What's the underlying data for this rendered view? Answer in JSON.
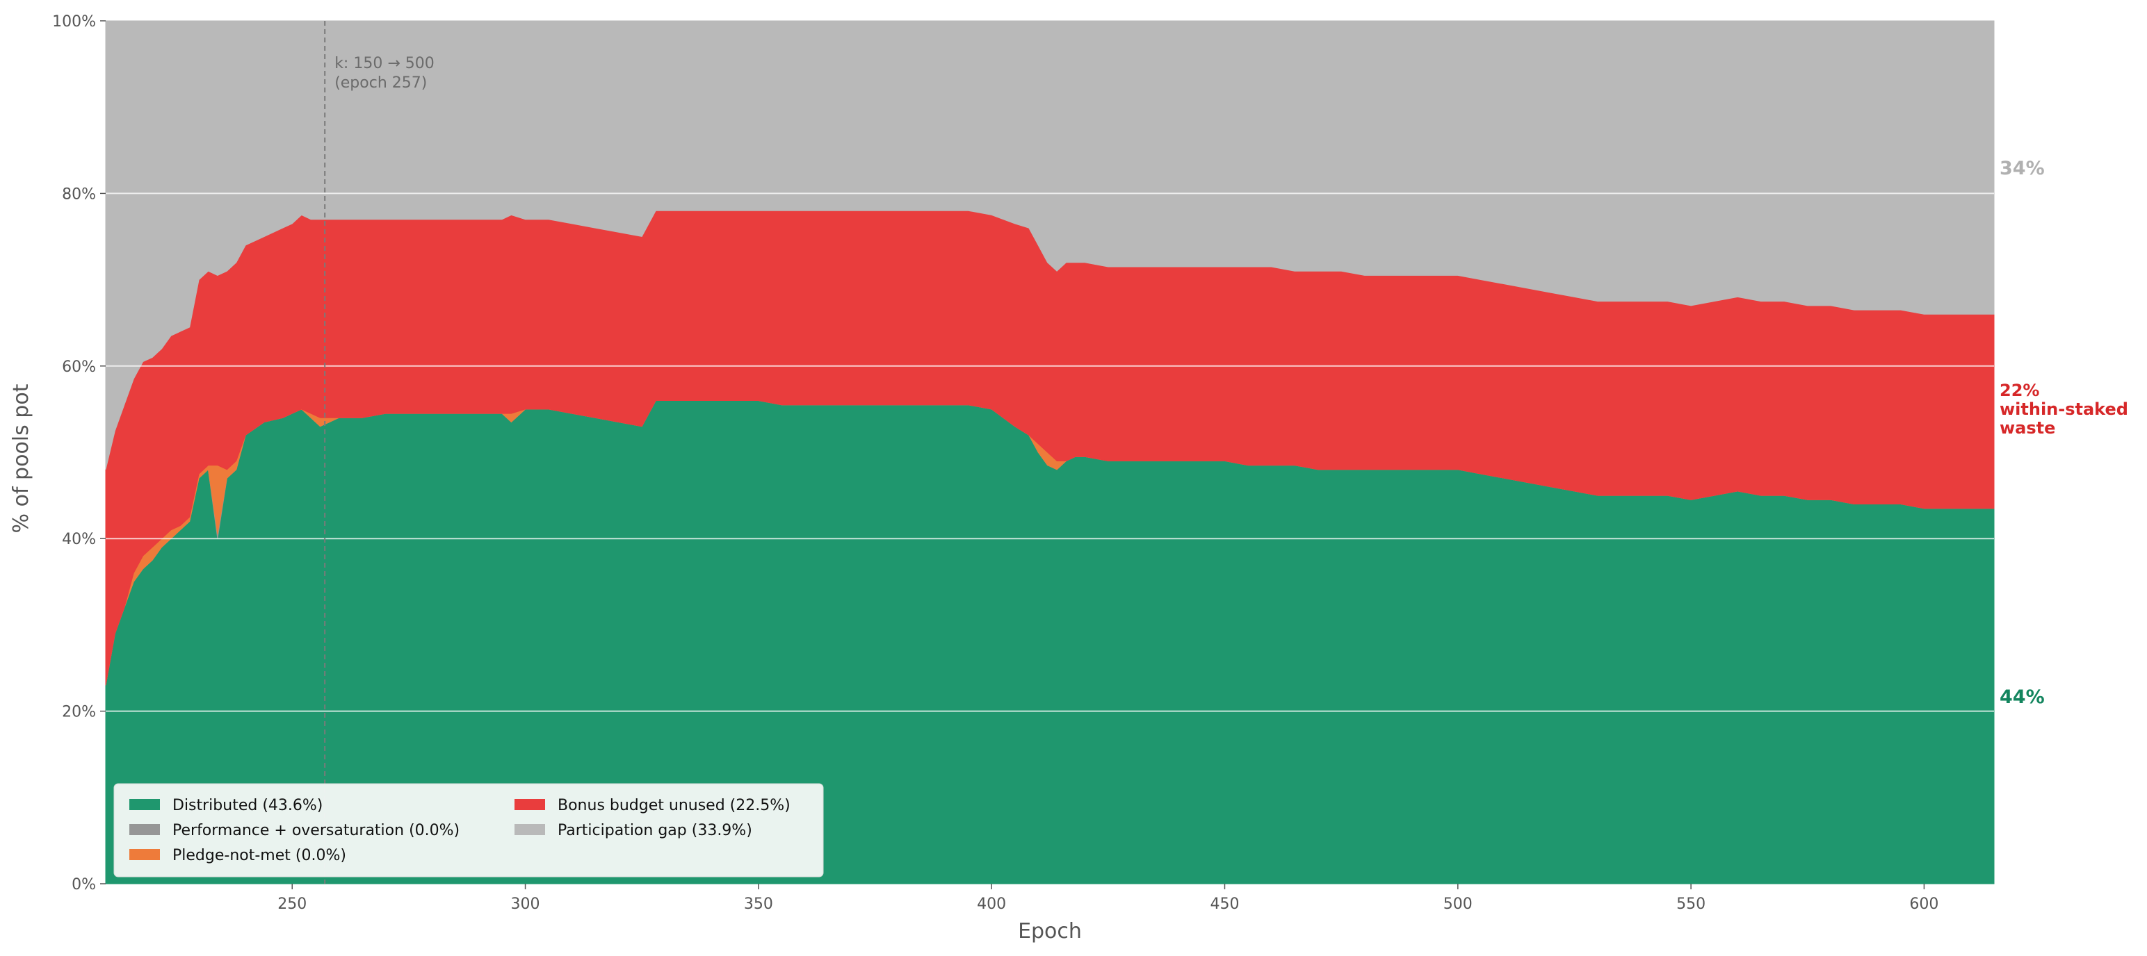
{
  "chart_data": {
    "type": "area",
    "stacked": true,
    "title": "",
    "xlabel": "Epoch",
    "ylabel": "% of pools pot",
    "xlim": [
      210,
      615
    ],
    "ylim": [
      0,
      100
    ],
    "x_ticks": [
      250,
      300,
      350,
      400,
      450,
      500,
      550,
      600
    ],
    "x_tick_labels": [
      "250",
      "300",
      "350",
      "400",
      "450",
      "500",
      "550",
      "600"
    ],
    "y_ticks": [
      0,
      20,
      40,
      60,
      80,
      100
    ],
    "y_tick_labels": [
      "0%",
      "20%",
      "40%",
      "60%",
      "80%",
      "100%"
    ],
    "grid": "horizontal",
    "legend_position": "bottom-left",
    "x": [
      210,
      212,
      214,
      216,
      218,
      220,
      222,
      224,
      226,
      228,
      230,
      232,
      234,
      236,
      238,
      240,
      244,
      248,
      250,
      252,
      254,
      256,
      258,
      260,
      265,
      270,
      275,
      280,
      285,
      290,
      295,
      297,
      300,
      305,
      310,
      315,
      320,
      325,
      328,
      330,
      335,
      340,
      345,
      350,
      355,
      360,
      365,
      370,
      375,
      380,
      385,
      390,
      395,
      400,
      405,
      408,
      410,
      412,
      414,
      416,
      418,
      420,
      425,
      430,
      435,
      440,
      445,
      450,
      455,
      460,
      465,
      470,
      475,
      480,
      485,
      490,
      495,
      500,
      505,
      510,
      515,
      520,
      525,
      530,
      535,
      540,
      545,
      550,
      555,
      560,
      565,
      570,
      575,
      580,
      585,
      590,
      595,
      600,
      605,
      610,
      615
    ],
    "series": [
      {
        "name": "Distributed (43.6%)",
        "color": "#1f976e",
        "values": [
          23,
          29,
          32,
          35,
          36.5,
          37.5,
          39,
          40,
          41,
          42,
          47,
          48,
          40,
          47,
          48,
          52,
          53.5,
          54,
          54.5,
          55,
          54,
          53,
          53.5,
          54,
          54,
          54.5,
          54.5,
          54.5,
          54.5,
          54.5,
          54.5,
          53.5,
          55,
          55,
          54.5,
          54,
          53.5,
          53,
          56,
          56,
          56,
          56,
          56,
          56,
          55.5,
          55.5,
          55.5,
          55.5,
          55.5,
          55.5,
          55.5,
          55.5,
          55.5,
          55,
          53,
          52,
          50,
          48.5,
          48,
          49,
          49.5,
          49.5,
          49,
          49,
          49,
          49,
          49,
          49,
          48.5,
          48.5,
          48.5,
          48,
          48,
          48,
          48,
          48,
          48,
          48,
          47.5,
          47,
          46.5,
          46,
          45.5,
          45,
          45,
          45,
          45,
          44.5,
          45,
          45.5,
          45,
          45,
          44.5,
          44.5,
          44,
          44,
          44,
          43.5,
          43.5,
          43.5,
          43.5
        ]
      },
      {
        "name": "Performance + oversaturation (0.0%)",
        "color": "#969696",
        "values": [
          0,
          0,
          0,
          0,
          0,
          0,
          0,
          0,
          0,
          0,
          0,
          0,
          0.5,
          0,
          0,
          0,
          0,
          0,
          0,
          0,
          0,
          0,
          0,
          0,
          0,
          0,
          0,
          0,
          0,
          0,
          0,
          0,
          0,
          0,
          0,
          0,
          0,
          0,
          0,
          0,
          0,
          0,
          0,
          0,
          0,
          0,
          0,
          0,
          0,
          0,
          0,
          0,
          0,
          0,
          0,
          0,
          0,
          0,
          0,
          0,
          0,
          0,
          0,
          0,
          0,
          0,
          0,
          0,
          0,
          0,
          0,
          0,
          0,
          0,
          0,
          0,
          0,
          0,
          0,
          0,
          0,
          0,
          0,
          0,
          0,
          0,
          0,
          0,
          0,
          0,
          0,
          0,
          0,
          0,
          0,
          0,
          0,
          0,
          0,
          0,
          0
        ]
      },
      {
        "name": "Pledge-not-met (0.0%)",
        "color": "#ee7b3a",
        "values": [
          0,
          0,
          0,
          1,
          1.5,
          1.5,
          1,
          1,
          0.5,
          0.5,
          0.5,
          0.5,
          8,
          1,
          1,
          0,
          0,
          0,
          0,
          0,
          0.5,
          1,
          0.5,
          0,
          0,
          0,
          0,
          0,
          0,
          0,
          0,
          1,
          0,
          0,
          0,
          0,
          0,
          0,
          0,
          0,
          0,
          0,
          0,
          0,
          0,
          0,
          0,
          0,
          0,
          0,
          0,
          0,
          0,
          0,
          0,
          0,
          1,
          1.5,
          1,
          0,
          0,
          0,
          0,
          0,
          0,
          0,
          0,
          0,
          0,
          0,
          0,
          0,
          0,
          0,
          0,
          0,
          0,
          0,
          0,
          0,
          0,
          0,
          0,
          0,
          0,
          0,
          0,
          0,
          0,
          0,
          0,
          0,
          0,
          0,
          0,
          0,
          0,
          0,
          0,
          0,
          0
        ]
      },
      {
        "name": "Bonus budget unused (22.5%)",
        "color": "#e93d3d",
        "values": [
          25,
          23.5,
          23.5,
          22.5,
          22.5,
          22,
          22,
          22.5,
          22.5,
          22,
          22.5,
          22.5,
          22,
          23,
          23,
          22,
          21.5,
          22,
          22,
          22.5,
          22.5,
          23,
          23,
          23,
          23,
          22.5,
          22.5,
          22.5,
          22.5,
          22.5,
          22.5,
          23,
          22,
          22,
          22,
          22,
          22,
          22,
          22,
          22,
          22,
          22,
          22,
          22,
          22.5,
          22.5,
          22.5,
          22.5,
          22.5,
          22.5,
          22.5,
          22.5,
          22.5,
          22.5,
          23.5,
          24,
          23,
          22,
          22,
          23,
          22.5,
          22.5,
          22.5,
          22.5,
          22.5,
          22.5,
          22.5,
          22.5,
          23,
          23,
          22.5,
          23,
          23,
          22.5,
          22.5,
          22.5,
          22.5,
          22.5,
          22.5,
          22.5,
          22.5,
          22.5,
          22.5,
          22.5,
          22.5,
          22.5,
          22.5,
          22.5,
          22.5,
          22.5,
          22.5,
          22.5,
          22.5,
          22.5,
          22.5,
          22.5,
          22.5,
          22.5,
          22.5,
          22.5,
          22.5
        ]
      },
      {
        "name": "Participation gap (33.9%)",
        "color": "#b9b9b9",
        "values": [
          52,
          47.5,
          44.5,
          41.5,
          39.5,
          39,
          38,
          36.5,
          36,
          35.5,
          30,
          29,
          29.5,
          29,
          28,
          26,
          25,
          24,
          23.5,
          22.5,
          23,
          23,
          23,
          23,
          23,
          23,
          23,
          23,
          23,
          23,
          23,
          22.5,
          23,
          23,
          23.5,
          24,
          24.5,
          25,
          22,
          22,
          22,
          22,
          22,
          22,
          22,
          22,
          22,
          22,
          22,
          22,
          22,
          22,
          22,
          22.5,
          23.5,
          24,
          26,
          28,
          29,
          28,
          28,
          28,
          28.5,
          28.5,
          28.5,
          28.5,
          28.5,
          28.5,
          28.5,
          28.5,
          29,
          29,
          29,
          29.5,
          29.5,
          29.5,
          29.5,
          29.5,
          30,
          30.5,
          31,
          31.5,
          32,
          32.5,
          32.5,
          32.5,
          32.5,
          33,
          32.5,
          32,
          32.5,
          32.5,
          33,
          33,
          33.5,
          33.5,
          33.5,
          34,
          34,
          34,
          34
        ]
      }
    ],
    "vline": {
      "x": 257,
      "label_line1": "k: 150 → 500",
      "label_line2": "(epoch 257)"
    },
    "end_labels": {
      "gap": {
        "text": "34%",
        "color": "#b0b0b0"
      },
      "waste": {
        "line1": "22%",
        "line2": "within-staked",
        "line3": "waste",
        "color": "#d62728"
      },
      "distributed": {
        "text": "44%",
        "color": "#13855e"
      }
    }
  }
}
